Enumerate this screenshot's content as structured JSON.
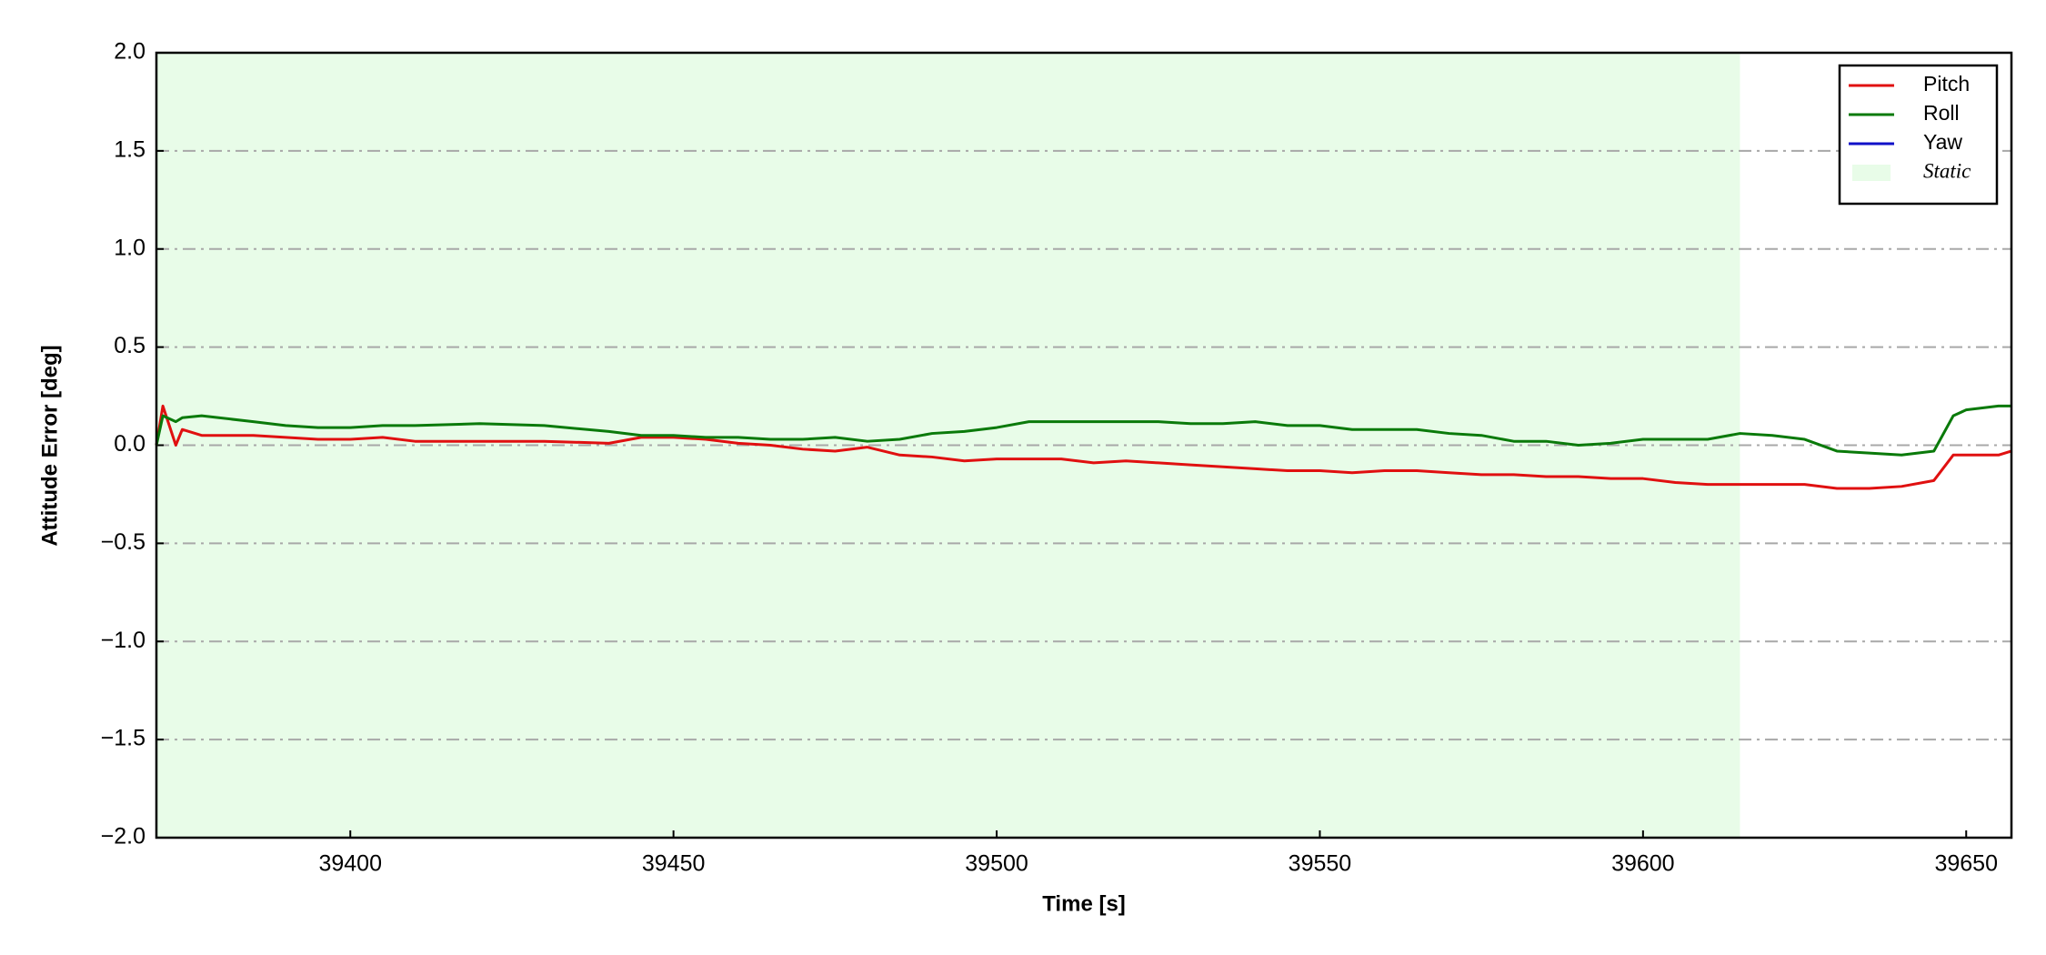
{
  "chart_data": {
    "type": "line",
    "xlabel": "Time [s]",
    "ylabel": "Attitude Error [deg]",
    "x": [
      39370,
      39371,
      39373,
      39374,
      39377,
      39385,
      39390,
      39395,
      39400,
      39405,
      39410,
      39420,
      39430,
      39440,
      39445,
      39450,
      39455,
      39460,
      39465,
      39470,
      39475,
      39480,
      39485,
      39490,
      39495,
      39500,
      39505,
      39510,
      39515,
      39520,
      39525,
      39530,
      39535,
      39540,
      39545,
      39550,
      39555,
      39560,
      39565,
      39570,
      39575,
      39580,
      39585,
      39590,
      39595,
      39600,
      39605,
      39610,
      39615,
      39620,
      39625,
      39630,
      39635,
      39640,
      39645,
      39648,
      39650,
      39655,
      39657
    ],
    "series": [
      {
        "name": "Pitch",
        "color": "#e01010",
        "values": [
          0,
          0.2,
          0,
          0.08,
          0.05,
          0.05,
          0.04,
          0.03,
          0.03,
          0.04,
          0.02,
          0.02,
          0.02,
          0.01,
          0.04,
          0.04,
          0.03,
          0.01,
          0,
          -0.02,
          -0.03,
          -0.01,
          -0.05,
          -0.06,
          -0.08,
          -0.07,
          -0.07,
          -0.07,
          -0.09,
          -0.08,
          -0.09,
          -0.1,
          -0.11,
          -0.12,
          -0.13,
          -0.13,
          -0.14,
          -0.13,
          -0.13,
          -0.14,
          -0.15,
          -0.15,
          -0.16,
          -0.16,
          -0.17,
          -0.17,
          -0.19,
          -0.2,
          -0.2,
          -0.2,
          -0.2,
          -0.22,
          -0.22,
          -0.21,
          -0.18,
          -0.05,
          -0.05,
          -0.05,
          -0.03
        ]
      },
      {
        "name": "Roll",
        "color": "#0a7a0a",
        "values": [
          0,
          0.15,
          0.12,
          0.14,
          0.15,
          0.12,
          0.1,
          0.09,
          0.09,
          0.1,
          0.1,
          0.11,
          0.1,
          0.07,
          0.05,
          0.05,
          0.04,
          0.04,
          0.03,
          0.03,
          0.04,
          0.02,
          0.03,
          0.06,
          0.07,
          0.09,
          0.12,
          0.12,
          0.12,
          0.12,
          0.12,
          0.11,
          0.11,
          0.12,
          0.1,
          0.1,
          0.08,
          0.08,
          0.08,
          0.06,
          0.05,
          0.02,
          0.02,
          0,
          0.01,
          0.03,
          0.03,
          0.03,
          0.06,
          0.05,
          0.03,
          -0.03,
          -0.04,
          -0.05,
          -0.03,
          0.15,
          0.18,
          0.2,
          0.2
        ]
      },
      {
        "name": "Yaw",
        "color": "#1010c8",
        "values": [
          null,
          null,
          null,
          null,
          null,
          null,
          null,
          null,
          null,
          null,
          null,
          null,
          null,
          null,
          null,
          null,
          null,
          null,
          null,
          null,
          null,
          null,
          null,
          null,
          null,
          null,
          null,
          null,
          null,
          null,
          null,
          null,
          null,
          null,
          null,
          null,
          null,
          null,
          null,
          null,
          null,
          null,
          null,
          null,
          null,
          null,
          null,
          null,
          null,
          null,
          null,
          null,
          null,
          null,
          null,
          null,
          null,
          null,
          null
        ]
      }
    ],
    "spans": [
      {
        "label": "Static",
        "start": 39370,
        "end": 39615,
        "color": "#e8fce8"
      }
    ],
    "xlim": [
      39370,
      39657
    ],
    "xticks": [
      39400,
      39450,
      39500,
      39550,
      39600,
      39650
    ],
    "ylim": [
      -2,
      2
    ],
    "yticks": [
      {
        "value": -2,
        "label": "−2.0"
      },
      {
        "value": -1.5,
        "label": "−1.5"
      },
      {
        "value": -1,
        "label": "−1.0"
      },
      {
        "value": -0.5,
        "label": "−0.5"
      },
      {
        "value": 0,
        "label": "0.0"
      },
      {
        "value": 0.5,
        "label": "0.5"
      },
      {
        "value": 1,
        "label": "1.0"
      },
      {
        "value": 1.5,
        "label": "1.5"
      },
      {
        "value": 2,
        "label": "2.0"
      }
    ],
    "grid": true,
    "legend": "upper right"
  }
}
